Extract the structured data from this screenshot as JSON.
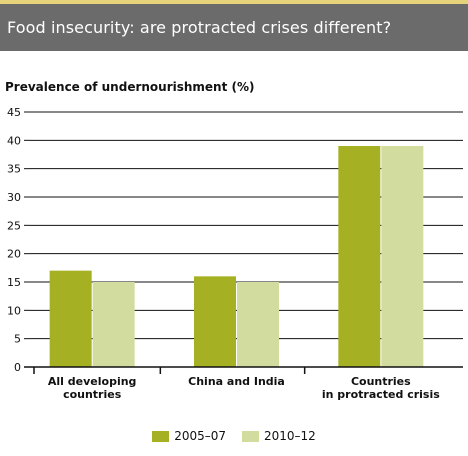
{
  "header": {
    "title": "Food insecurity: are protracted crises different?"
  },
  "colors": {
    "header_bg": "#6b6b6b",
    "series_2005": "#a5b122",
    "series_2010": "#d2dc9f",
    "axis": "#111111"
  },
  "chart_data": {
    "type": "bar",
    "ylabel": "Prevalence of undernourishment (%)",
    "xlabel": "",
    "ylim": [
      0,
      45
    ],
    "yticks": [
      "0",
      "5",
      "10",
      "15",
      "20",
      "25",
      "30",
      "35",
      "40",
      "45"
    ],
    "grid": true,
    "legend_position": "bottom-center",
    "categories": [
      [
        "All developing",
        "countries"
      ],
      [
        "China and India"
      ],
      [
        "Countries",
        "in protracted crisis"
      ]
    ],
    "series": [
      {
        "name": "2005–07",
        "values": [
          17,
          16,
          39
        ]
      },
      {
        "name": "2010–12",
        "values": [
          15,
          15,
          39
        ]
      }
    ]
  }
}
